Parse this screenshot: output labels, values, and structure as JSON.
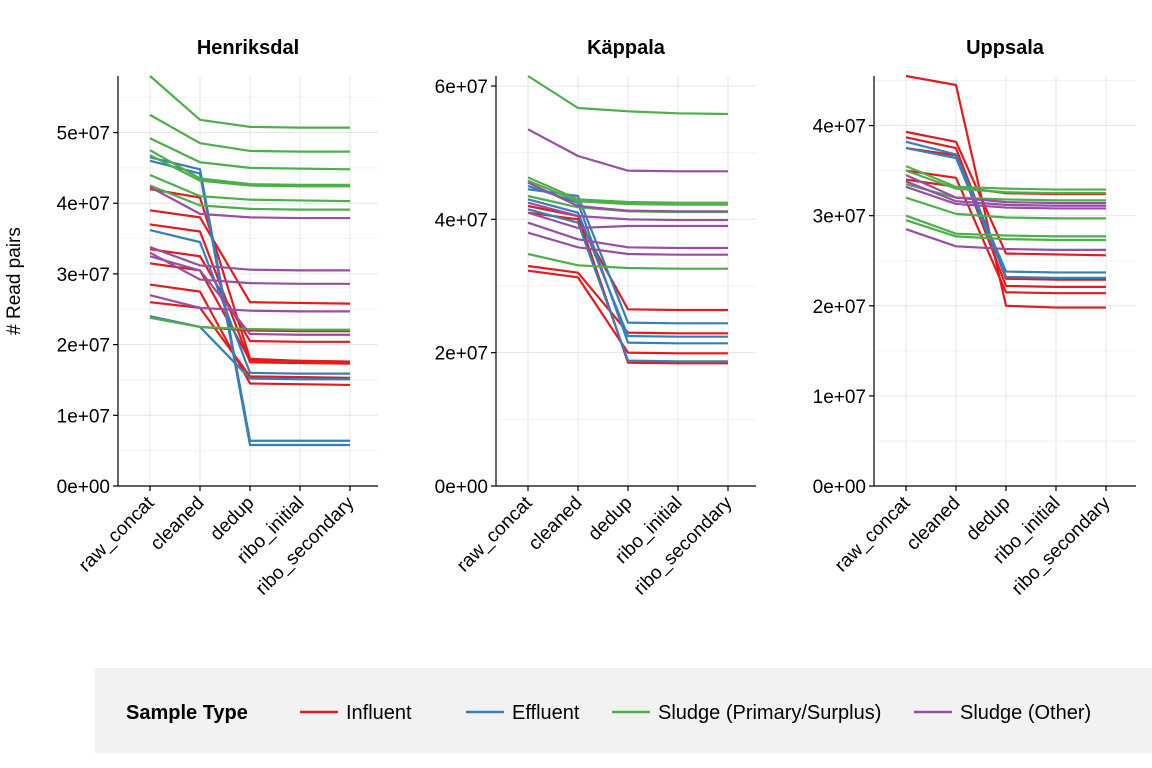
{
  "chart_data": {
    "type": "line",
    "ylabel": "# Read pairs",
    "categories": [
      "raw_concat",
      "cleaned",
      "dedup",
      "ribo_initial",
      "ribo_secondary"
    ],
    "legend": {
      "title": "Sample Type",
      "placement": "bottom",
      "entries": [
        {
          "name": "Influent",
          "color": "#e41a1c"
        },
        {
          "name": "Effluent",
          "color": "#377eb8"
        },
        {
          "name": "Sludge (Primary/Surplus)",
          "color": "#4daf4a"
        },
        {
          "name": "Sludge (Other)",
          "color": "#984ea3"
        }
      ]
    },
    "grid": true,
    "panels": [
      {
        "title": "Henriksdal",
        "ylim": [
          0,
          58000000
        ],
        "yticks": [
          0,
          10000000,
          20000000,
          30000000,
          40000000,
          50000000
        ],
        "ytick_labels": [
          "0e+00",
          "1e+07",
          "2e+07",
          "3e+07",
          "4e+07",
          "5e+07"
        ],
        "series": [
          {
            "type": "Influent",
            "values": [
              42000000,
              40800000,
              18000000,
              17700000,
              17600000
            ]
          },
          {
            "type": "Influent",
            "values": [
              39000000,
              38000000,
              26000000,
              25900000,
              25800000
            ]
          },
          {
            "type": "Influent",
            "values": [
              37000000,
              36000000,
              17500000,
              17400000,
              17300000
            ]
          },
          {
            "type": "Influent",
            "values": [
              33500000,
              32500000,
              20500000,
              20400000,
              20400000
            ]
          },
          {
            "type": "Influent",
            "values": [
              31500000,
              30500000,
              17800000,
              17700000,
              17600000
            ]
          },
          {
            "type": "Influent",
            "values": [
              28500000,
              27500000,
              14500000,
              14400000,
              14300000
            ]
          },
          {
            "type": "Influent",
            "values": [
              26000000,
              25200000,
              15500000,
              15400000,
              15300000
            ]
          },
          {
            "type": "Influent",
            "values": [
              24000000,
              22500000,
              22000000,
              21900000,
              21900000
            ]
          },
          {
            "type": "Effluent",
            "values": [
              46500000,
              44800000,
              6400000,
              6400000,
              6400000
            ]
          },
          {
            "type": "Effluent",
            "values": [
              46000000,
              44200000,
              5800000,
              5800000,
              5800000
            ]
          },
          {
            "type": "Effluent",
            "values": [
              36200000,
              34500000,
              16000000,
              15900000,
              15900000
            ]
          },
          {
            "type": "Effluent",
            "values": [
              24000000,
              22500000,
              15200000,
              15100000,
              15100000
            ]
          },
          {
            "type": "Sludge (Primary/Surplus)",
            "values": [
              58000000,
              51800000,
              50800000,
              50700000,
              50700000
            ]
          },
          {
            "type": "Sludge (Primary/Surplus)",
            "values": [
              52500000,
              48500000,
              47400000,
              47300000,
              47300000
            ]
          },
          {
            "type": "Sludge (Primary/Surplus)",
            "values": [
              49200000,
              45800000,
              45000000,
              44900000,
              44800000
            ]
          },
          {
            "type": "Sludge (Primary/Surplus)",
            "values": [
              47500000,
              43500000,
              42700000,
              42600000,
              42600000
            ]
          },
          {
            "type": "Sludge (Primary/Surplus)",
            "values": [
              46800000,
              43200000,
              42500000,
              42400000,
              42400000
            ]
          },
          {
            "type": "Sludge (Primary/Surplus)",
            "values": [
              44000000,
              41000000,
              40500000,
              40400000,
              40300000
            ]
          },
          {
            "type": "Sludge (Primary/Surplus)",
            "values": [
              42500000,
              39700000,
              39200000,
              39100000,
              39100000
            ]
          },
          {
            "type": "Sludge (Primary/Surplus)",
            "values": [
              23800000,
              22500000,
              22200000,
              22100000,
              22100000
            ]
          },
          {
            "type": "Sludge (Other)",
            "values": [
              42300000,
              38500000,
              38000000,
              37900000,
              37900000
            ]
          },
          {
            "type": "Sludge (Other)",
            "values": [
              33800000,
              31200000,
              30600000,
              30500000,
              30500000
            ]
          },
          {
            "type": "Sludge (Other)",
            "values": [
              33000000,
              29200000,
              28700000,
              28600000,
              28600000
            ]
          },
          {
            "type": "Sludge (Other)",
            "values": [
              27000000,
              25200000,
              24800000,
              24700000,
              24700000
            ]
          },
          {
            "type": "Sludge (Other)",
            "values": [
              32500000,
              30500000,
              21500000,
              21400000,
              21400000
            ]
          }
        ]
      },
      {
        "title": "Käppala",
        "ylim": [
          0,
          61500000
        ],
        "yticks": [
          0,
          20000000,
          40000000,
          60000000
        ],
        "ytick_labels": [
          "0e+00",
          "2e+07",
          "4e+07",
          "6e+07"
        ],
        "series": [
          {
            "type": "Influent",
            "values": [
              41000000,
              40000000,
              26500000,
              26400000,
              26400000
            ]
          },
          {
            "type": "Influent",
            "values": [
              33000000,
              32000000,
              23000000,
              22900000,
              22900000
            ]
          },
          {
            "type": "Influent",
            "values": [
              32300000,
              31300000,
              20000000,
              19900000,
              19900000
            ]
          },
          {
            "type": "Influent",
            "values": [
              42000000,
              40500000,
              18500000,
              18400000,
              18400000
            ]
          },
          {
            "type": "Effluent",
            "values": [
              44500000,
              43500000,
              24500000,
              24400000,
              24400000
            ]
          },
          {
            "type": "Effluent",
            "values": [
              45000000,
              42500000,
              21500000,
              21400000,
              21400000
            ]
          },
          {
            "type": "Effluent",
            "values": [
              43000000,
              41000000,
              22500000,
              22400000,
              22400000
            ]
          },
          {
            "type": "Effluent",
            "values": [
              41500000,
              39500000,
              18800000,
              18700000,
              18700000
            ]
          },
          {
            "type": "Sludge (Primary/Surplus)",
            "values": [
              61500000,
              56700000,
              56200000,
              55900000,
              55800000
            ]
          },
          {
            "type": "Sludge (Primary/Surplus)",
            "values": [
              46300000,
              43000000,
              42600000,
              42500000,
              42500000
            ]
          },
          {
            "type": "Sludge (Primary/Surplus)",
            "values": [
              45800000,
              42700000,
              42300000,
              42200000,
              42200000
            ]
          },
          {
            "type": "Sludge (Primary/Surplus)",
            "values": [
              43500000,
              41800000,
              41200000,
              41100000,
              41100000
            ]
          },
          {
            "type": "Sludge (Primary/Surplus)",
            "values": [
              34800000,
              33100000,
              32700000,
              32600000,
              32600000
            ]
          },
          {
            "type": "Sludge (Other)",
            "values": [
              53500000,
              49500000,
              47300000,
              47200000,
              47200000
            ]
          },
          {
            "type": "Sludge (Other)",
            "values": [
              45500000,
              42000000,
              41300000,
              41200000,
              41200000
            ]
          },
          {
            "type": "Sludge (Other)",
            "values": [
              42500000,
              40500000,
              40000000,
              39900000,
              39900000
            ]
          },
          {
            "type": "Sludge (Other)",
            "values": [
              41000000,
              38700000,
              39000000,
              39000000,
              39000000
            ]
          },
          {
            "type": "Sludge (Other)",
            "values": [
              39500000,
              37000000,
              35800000,
              35700000,
              35700000
            ]
          },
          {
            "type": "Sludge (Other)",
            "values": [
              38000000,
              35800000,
              34800000,
              34700000,
              34700000
            ]
          }
        ]
      },
      {
        "title": "Uppsala",
        "ylim": [
          0,
          45500000
        ],
        "yticks": [
          0,
          10000000,
          20000000,
          30000000,
          40000000
        ],
        "ytick_labels": [
          "0e+00",
          "1e+07",
          "2e+07",
          "3e+07",
          "4e+07"
        ],
        "series": [
          {
            "type": "Influent",
            "values": [
              45500000,
              44500000,
              20000000,
              19800000,
              19800000
            ]
          },
          {
            "type": "Influent",
            "values": [
              39300000,
              38200000,
              25800000,
              25700000,
              25600000
            ]
          },
          {
            "type": "Influent",
            "values": [
              38700000,
              37500000,
              23000000,
              22900000,
              22900000
            ]
          },
          {
            "type": "Influent",
            "values": [
              37500000,
              36700000,
              22200000,
              22100000,
              22100000
            ]
          },
          {
            "type": "Influent",
            "values": [
              35000000,
              34200000,
              21500000,
              21400000,
              21400000
            ]
          },
          {
            "type": "Influent",
            "values": [
              34000000,
              33200000,
              32500000,
              32400000,
              32400000
            ]
          },
          {
            "type": "Effluent",
            "values": [
              38200000,
              36800000,
              23800000,
              23700000,
              23700000
            ]
          },
          {
            "type": "Effluent",
            "values": [
              37500000,
              36400000,
              23200000,
              23100000,
              23100000
            ]
          },
          {
            "type": "Sludge (Primary/Surplus)",
            "values": [
              35500000,
              33200000,
              33000000,
              32900000,
              32900000
            ]
          },
          {
            "type": "Sludge (Primary/Surplus)",
            "values": [
              35000000,
              33000000,
              32600000,
              32500000,
              32500000
            ]
          },
          {
            "type": "Sludge (Primary/Surplus)",
            "values": [
              33500000,
              32000000,
              31800000,
              31700000,
              31700000
            ]
          },
          {
            "type": "Sludge (Primary/Surplus)",
            "values": [
              32000000,
              30200000,
              29800000,
              29700000,
              29700000
            ]
          },
          {
            "type": "Sludge (Primary/Surplus)",
            "values": [
              30000000,
              28000000,
              27800000,
              27700000,
              27700000
            ]
          },
          {
            "type": "Sludge (Primary/Surplus)",
            "values": [
              29500000,
              27700000,
              27400000,
              27300000,
              27300000
            ]
          },
          {
            "type": "Sludge (Other)",
            "values": [
              34500000,
              32000000,
              31500000,
              31400000,
              31400000
            ]
          },
          {
            "type": "Sludge (Other)",
            "values": [
              33800000,
              31600000,
              31200000,
              31100000,
              31100000
            ]
          },
          {
            "type": "Sludge (Other)",
            "values": [
              33200000,
              31300000,
              30900000,
              30800000,
              30800000
            ]
          },
          {
            "type": "Sludge (Other)",
            "values": [
              28500000,
              26600000,
              26300000,
              26200000,
              26200000
            ]
          }
        ]
      }
    ]
  }
}
